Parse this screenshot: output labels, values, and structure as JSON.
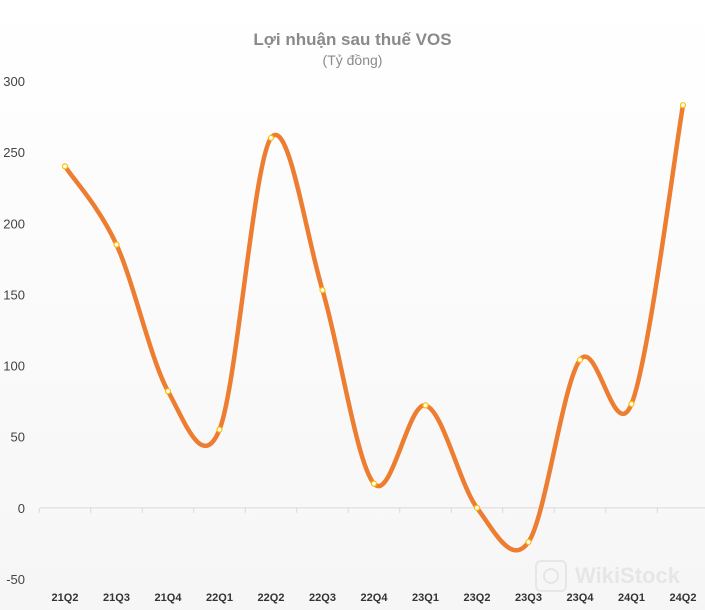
{
  "chart_data": {
    "type": "line",
    "title": "Lợi nhuận sau thuế VOS",
    "subtitle": "(Tỷ đồng)",
    "categories": [
      "21Q2",
      "21Q3",
      "21Q4",
      "22Q1",
      "22Q2",
      "22Q3",
      "22Q4",
      "23Q1",
      "23Q2",
      "23Q3",
      "23Q4",
      "24Q1",
      "24Q2"
    ],
    "series": [
      {
        "name": "Lợi nhuận sau thuế",
        "values": [
          240,
          185,
          82,
          55,
          260,
          153,
          17,
          72,
          0,
          -24,
          104,
          73,
          283
        ]
      }
    ],
    "y_ticks": [
      -50,
      0,
      50,
      100,
      150,
      200,
      250,
      300
    ],
    "ylim": [
      -50,
      300
    ],
    "xlabel": "",
    "ylabel": "",
    "grid": false,
    "legend": "none",
    "line_color": "#ED7D31",
    "marker_color": "#FFC000"
  },
  "watermark": {
    "text": "WikiStock"
  }
}
